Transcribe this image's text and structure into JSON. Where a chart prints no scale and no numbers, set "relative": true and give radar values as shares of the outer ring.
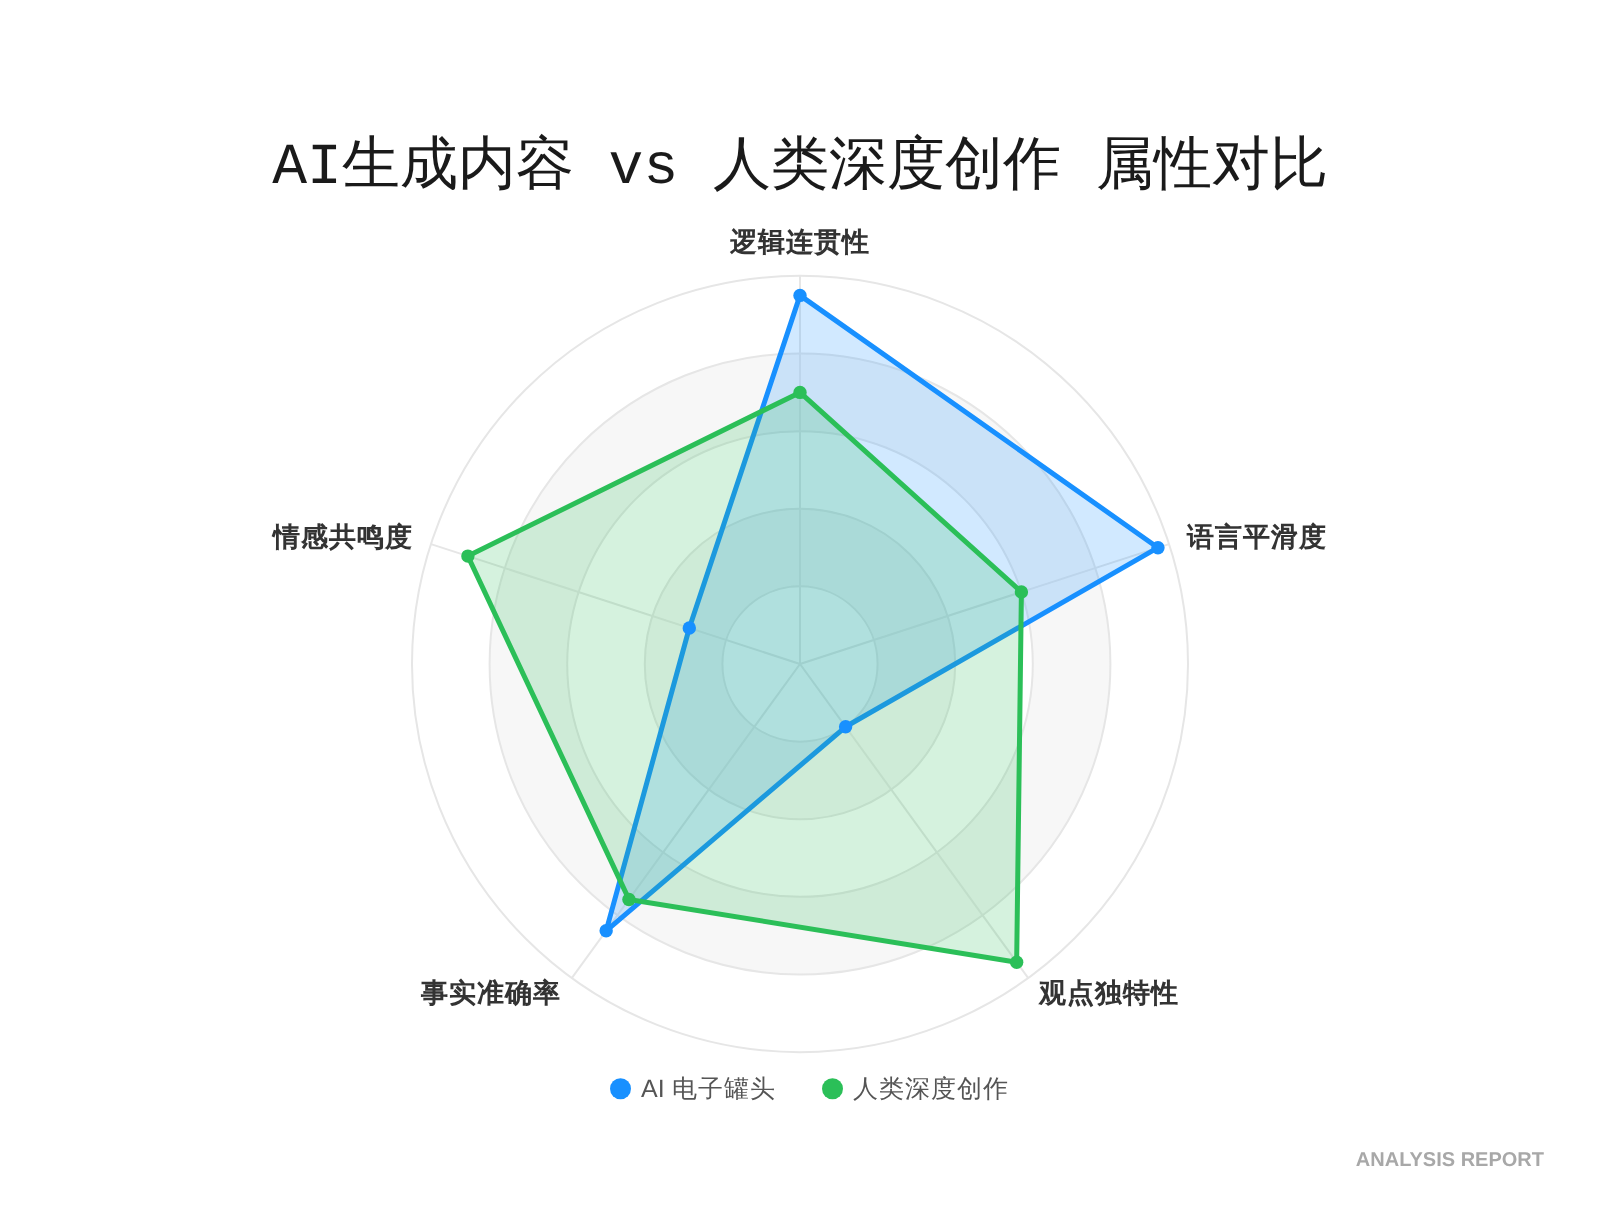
{
  "chart_data": {
    "type": "radar",
    "title": "AI生成内容 vs 人类深度创作 属性对比",
    "categories": [
      "逻辑连贯性",
      "语言平滑度",
      "观点独特性",
      "事实准确率",
      "情感共鸣度"
    ],
    "relative": true,
    "series": [
      {
        "name": "AI 电子罐头",
        "color": "#1890ff",
        "values": [
          0.95,
          0.97,
          0.2,
          0.85,
          0.3
        ]
      },
      {
        "name": "人类深度创作",
        "color": "#2bbf58",
        "values": [
          0.7,
          0.6,
          0.95,
          0.75,
          0.9
        ]
      }
    ],
    "grid": true,
    "legend": "bottom",
    "marker": "circle",
    "line_style": "solid",
    "annotations": [
      "ANALYSIS REPORT"
    ]
  }
}
